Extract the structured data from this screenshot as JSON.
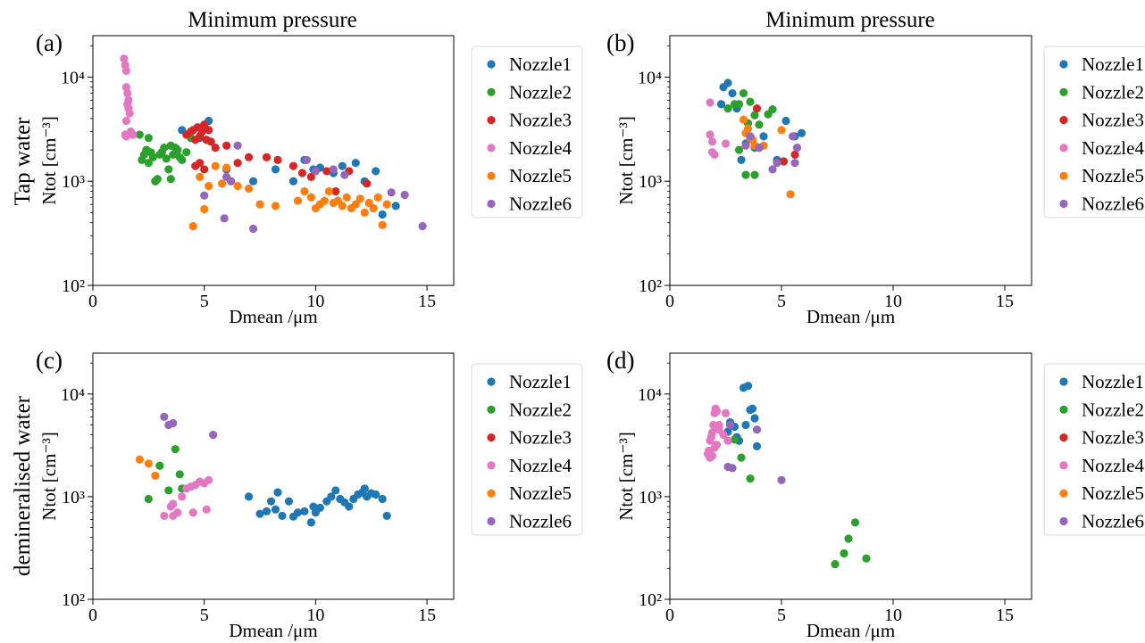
{
  "column_titles": [
    "Minimum pressure",
    "Minimum pressure"
  ],
  "row_labels": [
    "Tap water",
    "demineralised water"
  ],
  "colors": {
    "Nozzle1": "#1f77b4",
    "Nozzle2": "#2ca02c",
    "Nozzle3": "#d62728",
    "Nozzle4": "#e377c2",
    "Nozzle5": "#ff7f0e",
    "Nozzle6": "#9467bd"
  },
  "chart_data": [
    {
      "type": "scatter",
      "panel_label": "(a)",
      "title": "Minimum pressure",
      "xlabel": "Dmean /μm",
      "ylabel": "Ntot [cm⁻³]",
      "xlim": [
        0,
        16.2
      ],
      "ylim": [
        100,
        25000
      ],
      "yscale": "log",
      "xticks": [
        0,
        5,
        10,
        15
      ],
      "yticks": [
        100,
        1000,
        10000
      ],
      "ytick_labels": [
        "10²",
        "10³",
        "10⁴"
      ],
      "legend_position": "right-outside",
      "series": [
        {
          "name": "Nozzle1",
          "x": [
            4.0,
            5.2,
            4.8,
            6.0,
            7.2,
            8.2,
            9.0,
            9.5,
            9.9,
            10.2,
            10.8,
            11.2,
            11.8,
            12.2,
            12.7,
            13.0,
            13.6
          ],
          "y": [
            3100,
            3800,
            2600,
            1300,
            1000,
            1300,
            1000,
            1600,
            1300,
            1350,
            1200,
            1400,
            1500,
            1000,
            1250,
            480,
            580
          ]
        },
        {
          "name": "Nozzle2",
          "x": [
            2.1,
            2.2,
            2.3,
            2.4,
            2.5,
            2.6,
            2.7,
            2.8,
            2.9,
            3.0,
            3.1,
            3.2,
            3.3,
            3.4,
            3.5,
            3.6,
            3.7,
            3.8,
            3.9,
            4.0,
            4.2,
            4.4,
            2.5,
            2.8,
            3.5
          ],
          "y": [
            2800,
            1600,
            1800,
            2000,
            1500,
            1900,
            1700,
            1000,
            1050,
            1800,
            1900,
            2100,
            1650,
            1300,
            2200,
            1800,
            2100,
            2000,
            1700,
            1600,
            1900,
            2600,
            2600,
            1000,
            1050
          ]
        },
        {
          "name": "Nozzle3",
          "x": [
            4.2,
            4.4,
            4.5,
            4.6,
            4.7,
            4.8,
            4.9,
            5.0,
            5.1,
            5.2,
            5.3,
            4.6,
            4.8,
            5.0,
            5.5,
            6.0,
            6.5,
            7.0,
            7.8,
            8.3,
            9.0,
            9.4,
            9.8,
            10.5,
            10.9,
            11.5,
            12.3
          ],
          "y": [
            2800,
            3000,
            3100,
            2500,
            3300,
            2700,
            3000,
            3500,
            2500,
            3100,
            2400,
            1400,
            1500,
            1300,
            2100,
            2200,
            1500,
            1700,
            1700,
            1600,
            1400,
            1200,
            1100,
            1250,
            800,
            1250,
            950
          ]
        },
        {
          "name": "Nozzle4",
          "x": [
            1.4,
            1.45,
            1.5,
            1.5,
            1.55,
            1.6,
            1.6,
            1.65,
            1.7,
            1.8,
            1.5,
            1.55,
            1.45,
            1.5
          ],
          "y": [
            15000,
            13000,
            11500,
            8000,
            7000,
            6000,
            5000,
            4500,
            3000,
            2800,
            3800,
            5500,
            2800,
            2700
          ]
        },
        {
          "name": "Nozzle5",
          "x": [
            4.5,
            4.8,
            5.0,
            5.2,
            5.5,
            5.8,
            6.0,
            6.2,
            6.5,
            7.0,
            7.5,
            8.2,
            9.2,
            9.5,
            9.8,
            10.0,
            10.2,
            10.4,
            10.6,
            10.8,
            11.0,
            11.2,
            11.4,
            11.6,
            11.8,
            12.0,
            12.2,
            12.4,
            12.6,
            12.8,
            13.0,
            13.2
          ],
          "y": [
            370,
            1100,
            540,
            900,
            1400,
            950,
            1350,
            1000,
            900,
            850,
            600,
            580,
            650,
            800,
            700,
            550,
            600,
            650,
            800,
            620,
            650,
            580,
            700,
            550,
            600,
            680,
            500,
            620,
            550,
            700,
            380,
            600
          ]
        },
        {
          "name": "Nozzle6",
          "x": [
            5.0,
            5.9,
            6.2,
            6.5,
            7.2,
            9.6,
            10.0,
            10.8,
            11.3,
            13.4,
            14.0,
            14.8,
            6.0
          ],
          "y": [
            730,
            440,
            1000,
            2200,
            350,
            1600,
            1250,
            1300,
            1150,
            780,
            740,
            370,
            1100
          ]
        }
      ]
    },
    {
      "type": "scatter",
      "panel_label": "(b)",
      "title": "Minimum pressure",
      "xlabel": "Dmean /μm",
      "ylabel": "Ntot [cm⁻³]",
      "xlim": [
        0,
        16.2
      ],
      "ylim": [
        100,
        25000
      ],
      "yscale": "log",
      "xticks": [
        0,
        5,
        10,
        15
      ],
      "yticks": [
        100,
        1000,
        10000
      ],
      "ytick_labels": [
        "10²",
        "10³",
        "10⁴"
      ],
      "legend_position": "right-outside",
      "series": [
        {
          "name": "Nozzle1",
          "x": [
            2.4,
            2.6,
            2.8,
            3.2,
            3.4,
            3.8,
            4.2,
            4.8,
            5.2,
            5.6,
            5.9,
            2.3,
            3.0
          ],
          "y": [
            8000,
            8800,
            7000,
            1600,
            2300,
            2100,
            2700,
            1600,
            3800,
            2700,
            2900,
            5500,
            5000
          ]
        },
        {
          "name": "Nozzle2",
          "x": [
            2.6,
            2.9,
            3.1,
            3.3,
            3.6,
            3.8,
            4.0,
            4.4,
            4.6,
            3.1,
            3.4,
            3.8,
            3.5,
            4.0
          ],
          "y": [
            5000,
            5500,
            5500,
            7000,
            5800,
            4300,
            3500,
            4400,
            4900,
            2000,
            1150,
            1150,
            3600,
            2100
          ]
        },
        {
          "name": "Nozzle3",
          "x": [
            3.9,
            5.1,
            5.6
          ],
          "y": [
            5000,
            1550,
            1800
          ]
        },
        {
          "name": "Nozzle4",
          "x": [
            1.8,
            1.8,
            1.9,
            2.0,
            1.9,
            2.5
          ],
          "y": [
            5700,
            2800,
            2400,
            1800,
            1900,
            2300
          ]
        },
        {
          "name": "Nozzle5",
          "x": [
            3.3,
            3.5,
            3.6,
            3.8,
            4.0,
            4.2,
            5.0,
            5.4,
            3.4,
            3.7
          ],
          "y": [
            3900,
            3200,
            2600,
            2200,
            2100,
            2200,
            3100,
            750,
            2900,
            2500
          ]
        },
        {
          "name": "Nozzle6",
          "x": [
            3.4,
            4.0,
            4.6,
            4.8,
            5.5,
            5.7,
            5.6,
            3.6
          ],
          "y": [
            2200,
            2100,
            1300,
            1500,
            2700,
            2100,
            1500,
            2700
          ]
        }
      ]
    },
    {
      "type": "scatter",
      "panel_label": "(c)",
      "title": "",
      "xlabel": "Dmean /μm",
      "ylabel": "Ntot [cm⁻³]",
      "xlim": [
        0,
        16.2
      ],
      "ylim": [
        100,
        25000
      ],
      "yscale": "log",
      "xticks": [
        0,
        5,
        10,
        15
      ],
      "yticks": [
        100,
        1000,
        10000
      ],
      "ytick_labels": [
        "10²",
        "10³",
        "10⁴"
      ],
      "legend_position": "right-outside",
      "series": [
        {
          "name": "Nozzle1",
          "x": [
            7.0,
            7.5,
            7.8,
            8.0,
            8.2,
            8.5,
            8.8,
            9.0,
            9.2,
            9.5,
            9.8,
            10.0,
            10.2,
            10.5,
            10.7,
            10.9,
            11.1,
            11.3,
            11.5,
            11.7,
            11.9,
            12.1,
            12.3,
            12.5,
            12.7,
            13.0,
            13.2,
            9.9,
            8.3,
            12.2
          ],
          "y": [
            1000,
            680,
            720,
            900,
            750,
            650,
            900,
            640,
            700,
            720,
            560,
            700,
            780,
            900,
            1000,
            1150,
            950,
            880,
            800,
            950,
            1050,
            1100,
            1000,
            1080,
            1050,
            950,
            650,
            800,
            1100,
            1200
          ]
        },
        {
          "name": "Nozzle2",
          "x": [
            2.5,
            3.0,
            3.4,
            3.7,
            3.9,
            4.0
          ],
          "y": [
            950,
            2000,
            1150,
            2900,
            1650,
            1200
          ]
        },
        {
          "name": "Nozzle3",
          "x": [],
          "y": []
        },
        {
          "name": "Nozzle4",
          "x": [
            3.2,
            3.5,
            3.6,
            3.8,
            4.0,
            4.2,
            4.4,
            4.6,
            4.8,
            5.0,
            5.2,
            3.6,
            4.5,
            5.1
          ],
          "y": [
            650,
            800,
            650,
            700,
            1000,
            1200,
            1250,
            1300,
            1400,
            1350,
            1450,
            850,
            700,
            750
          ]
        },
        {
          "name": "Nozzle5",
          "x": [
            2.1,
            2.5,
            2.8
          ],
          "y": [
            2300,
            2100,
            1600
          ]
        },
        {
          "name": "Nozzle6",
          "x": [
            3.2,
            3.4,
            3.6,
            5.4
          ],
          "y": [
            6000,
            5000,
            5200,
            4000
          ]
        }
      ]
    },
    {
      "type": "scatter",
      "panel_label": "(d)",
      "title": "",
      "xlabel": "Dmean /μm",
      "ylabel": "Ntot [cm⁻³]",
      "xlim": [
        0,
        16.2
      ],
      "ylim": [
        100,
        25000
      ],
      "yscale": "log",
      "xticks": [
        0,
        5,
        10,
        15
      ],
      "yticks": [
        100,
        1000,
        10000
      ],
      "ytick_labels": [
        "10²",
        "10³",
        "10⁴"
      ],
      "legend_position": "right-outside",
      "series": [
        {
          "name": "Nozzle1",
          "x": [
            2.7,
            2.9,
            3.1,
            3.3,
            3.5,
            3.6,
            3.7,
            3.8,
            3.9,
            3.4,
            2.6,
            3.0
          ],
          "y": [
            5300,
            4800,
            3500,
            11500,
            12000,
            7000,
            7200,
            5800,
            3100,
            5000,
            4300,
            3800
          ]
        },
        {
          "name": "Nozzle2",
          "x": [
            3.2,
            3.6,
            7.4,
            7.8,
            8.0,
            8.3,
            8.8,
            2.9
          ],
          "y": [
            2400,
            1500,
            220,
            280,
            390,
            560,
            250,
            3600
          ]
        },
        {
          "name": "Nozzle3",
          "x": [],
          "y": []
        },
        {
          "name": "Nozzle4",
          "x": [
            1.7,
            1.75,
            1.8,
            1.85,
            1.9,
            1.95,
            2.0,
            2.05,
            2.1,
            2.2,
            2.4,
            2.6,
            1.8,
            1.9,
            2.0,
            2.1,
            1.75,
            2.0,
            2.2,
            2.5
          ],
          "y": [
            2600,
            2800,
            3500,
            3800,
            4200,
            5000,
            6500,
            7200,
            6800,
            5000,
            4000,
            3500,
            2400,
            2500,
            3000,
            3200,
            2800,
            4800,
            4500,
            6500
          ]
        },
        {
          "name": "Nozzle5",
          "x": [],
          "y": []
        },
        {
          "name": "Nozzle6",
          "x": [
            2.6,
            2.8,
            2.7,
            5.0,
            3.9
          ],
          "y": [
            1950,
            1900,
            5000,
            1450,
            4500
          ]
        }
      ]
    }
  ]
}
